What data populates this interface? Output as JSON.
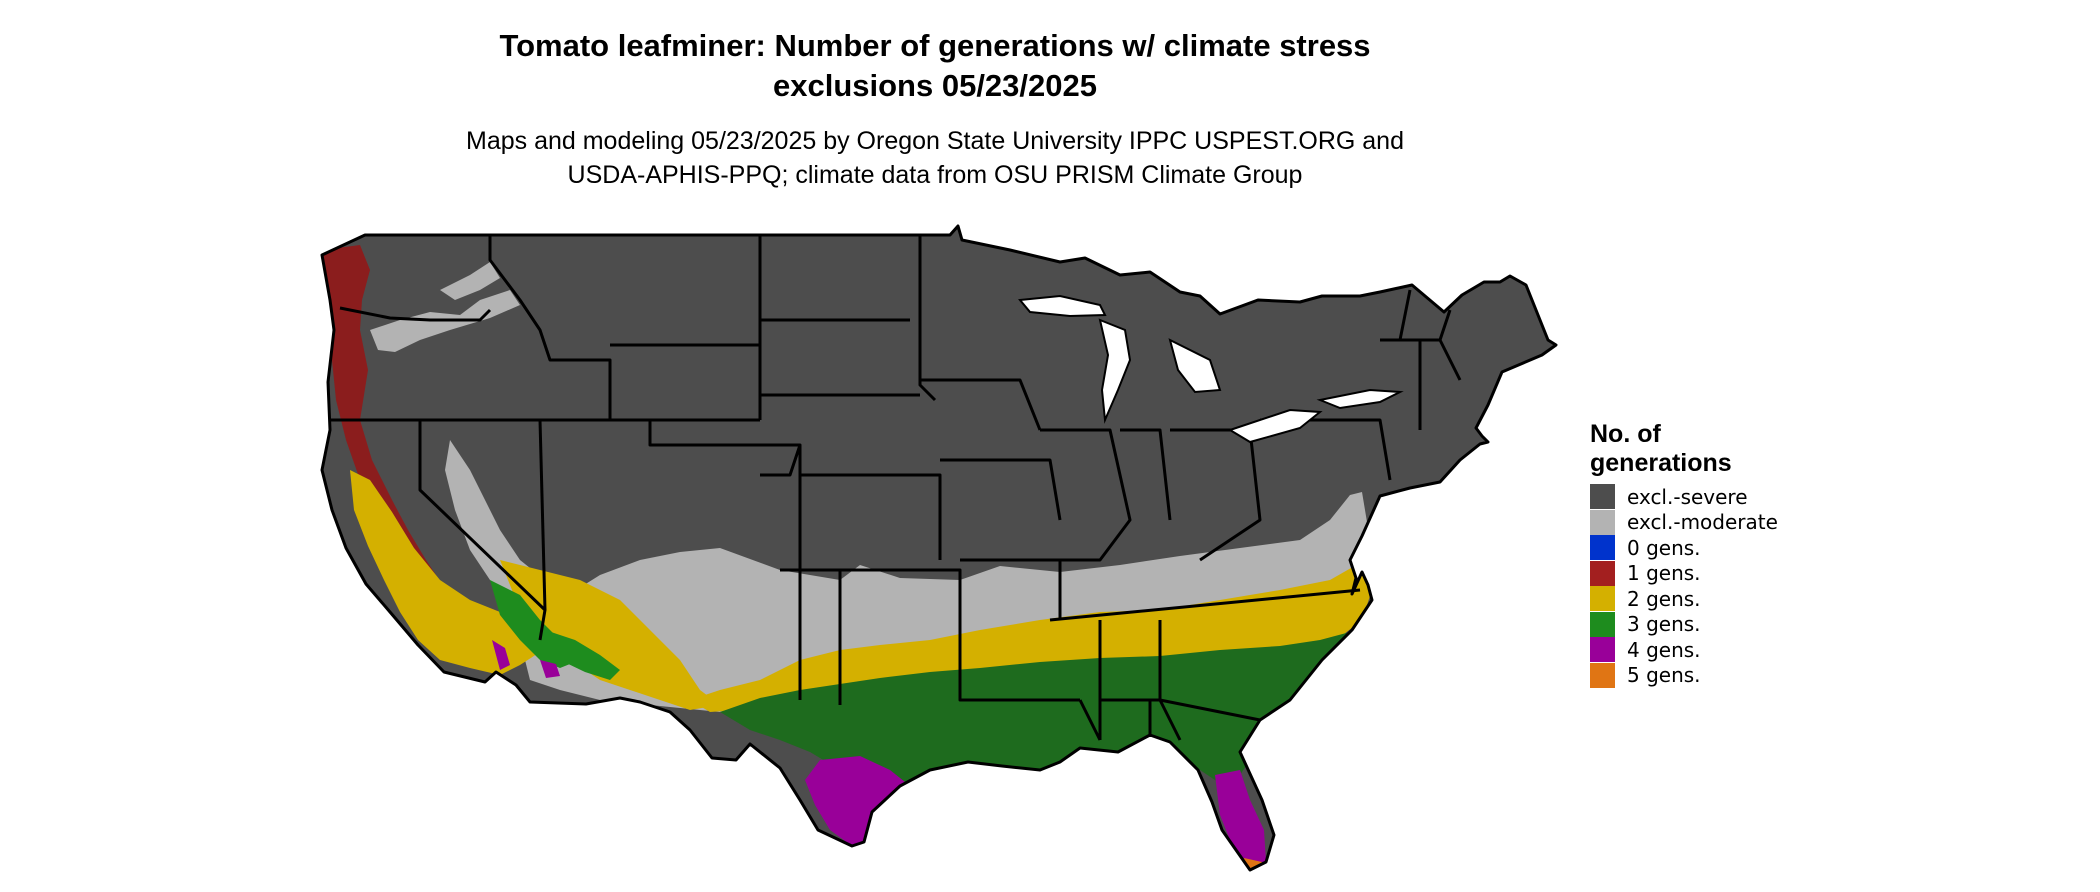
{
  "title_line1": "Tomato leafminer: Number of generations w/ climate stress",
  "title_line2": "exclusions 05/23/2025",
  "subtitle_line1": "Maps and modeling 05/23/2025 by Oregon State University IPPC USPEST.ORG and",
  "subtitle_line2": "USDA-APHIS-PPQ; climate data from OSU PRISM Climate Group",
  "legend": {
    "title_line1": "No. of",
    "title_line2": "generations",
    "items": [
      {
        "label": "excl.-severe",
        "color": "#4d4d4d"
      },
      {
        "label": "excl.-moderate",
        "color": "#b3b3b3"
      },
      {
        "label": "0 gens.",
        "color": "#0033cc"
      },
      {
        "label": "1 gens.",
        "color": "#a31f1f"
      },
      {
        "label": "2 gens.",
        "color": "#d4b000"
      },
      {
        "label": "3 gens.",
        "color": "#1e8c1e"
      },
      {
        "label": "4 gens.",
        "color": "#990099"
      },
      {
        "label": "5 gens.",
        "color": "#e07514"
      }
    ]
  }
}
